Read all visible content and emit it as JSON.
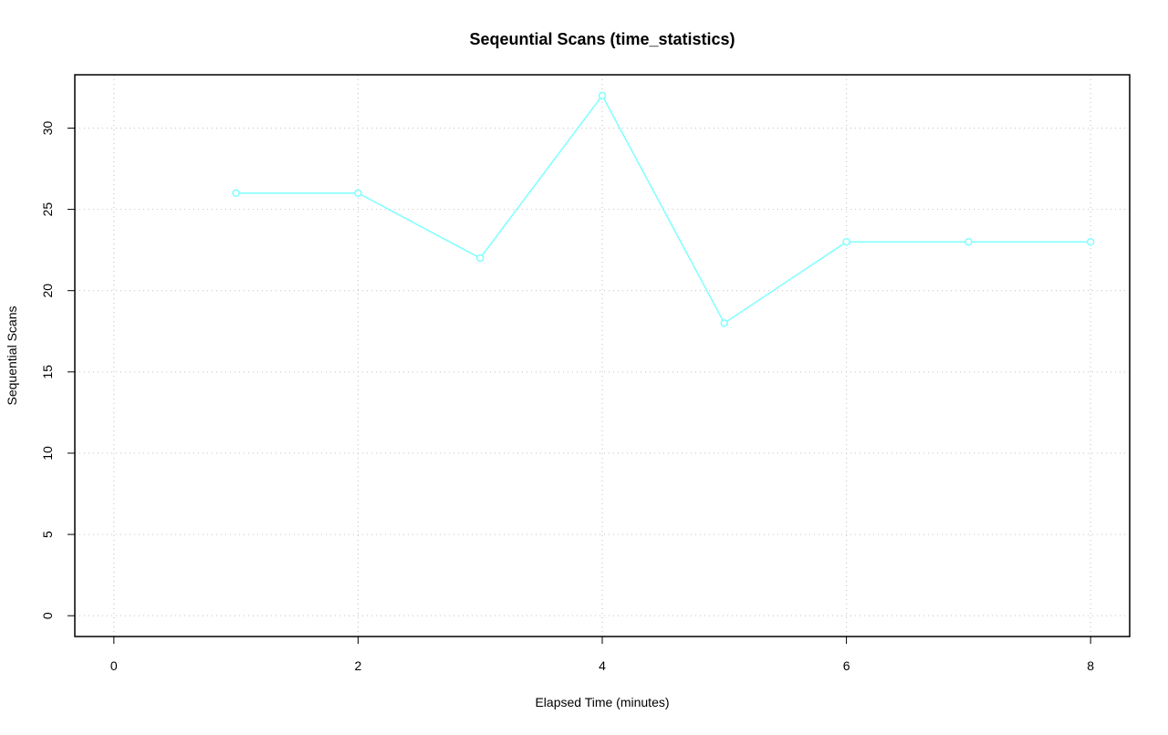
{
  "chart_data": {
    "type": "line",
    "title": "Seqeuntial Scans (time_statistics)",
    "x_label": "Elapsed Time (minutes)",
    "y_label": "Sequential Scans",
    "x": [
      1,
      2,
      3,
      4,
      5,
      6,
      7,
      8
    ],
    "series": [
      {
        "name": "Sequential Scans",
        "color": "#7fffff",
        "values": [
          26,
          26,
          22,
          32,
          18,
          23,
          23,
          23
        ]
      }
    ],
    "xlim": [
      -0.32,
      8.32
    ],
    "xticks": [
      0,
      2,
      4,
      6,
      8
    ],
    "ylim": [
      -1.28,
      33.28
    ],
    "yticks": [
      0,
      5,
      10,
      15,
      20,
      25,
      30
    ],
    "grid": true
  }
}
